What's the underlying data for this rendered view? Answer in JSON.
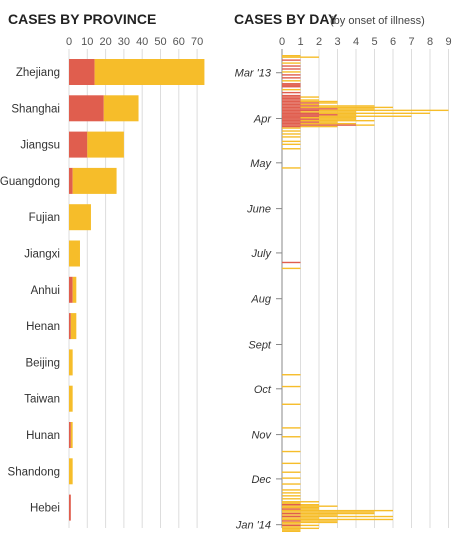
{
  "colors": {
    "dead": "#e05e4e",
    "alive": "#f6bd2a",
    "grid": "#dddddd",
    "axis": "#888888"
  },
  "chart_data": [
    {
      "type": "bar",
      "title": "CASES BY PROVINCE",
      "orientation": "horizontal",
      "stacked": true,
      "xlim": [
        0,
        75
      ],
      "xticks": [
        0,
        10,
        20,
        30,
        40,
        50,
        60,
        70
      ],
      "categories": [
        "Zhejiang",
        "Shanghai",
        "Jiangsu",
        "Guangdong",
        "Fujian",
        "Jiangxi",
        "Anhui",
        "Henan",
        "Beijing",
        "Taiwan",
        "Hunan",
        "Shandong",
        "Hebei"
      ],
      "series": [
        {
          "values": [
            14,
            19,
            10,
            2,
            0,
            0,
            2,
            1,
            0,
            0,
            1,
            0,
            1
          ]
        },
        {
          "values": [
            60,
            19,
            20,
            24,
            12,
            6,
            2,
            3,
            2,
            2,
            1,
            2,
            0
          ]
        }
      ]
    },
    {
      "type": "bar",
      "title": "CASES BY DAY",
      "subtitle": "(by onset of illness)",
      "orientation": "horizontal",
      "stacked": true,
      "xlim": [
        0,
        9
      ],
      "xticks": [
        0,
        1,
        2,
        3,
        4,
        5,
        6,
        7,
        8,
        9
      ],
      "month_labels": [
        "Mar '13",
        "Apr",
        "May",
        "June",
        "July",
        "Aug",
        "Sept",
        "Oct",
        "Nov",
        "Dec",
        "Jan '14"
      ],
      "days": [
        {
          "d": 0,
          "a": 0,
          "b": 1
        },
        {
          "d": 1,
          "a": 0,
          "b": 2
        },
        {
          "d": 3,
          "a": 1,
          "b": 0
        },
        {
          "d": 5,
          "a": 0,
          "b": 1
        },
        {
          "d": 7,
          "a": 1,
          "b": 0
        },
        {
          "d": 9,
          "a": 1,
          "b": 0
        },
        {
          "d": 11,
          "a": 0,
          "b": 1
        },
        {
          "d": 13,
          "a": 1,
          "b": 0
        },
        {
          "d": 15,
          "a": 1,
          "b": 0
        },
        {
          "d": 17,
          "a": 0,
          "b": 1
        },
        {
          "d": 19,
          "a": 1,
          "b": 0
        },
        {
          "d": 20,
          "a": 1,
          "b": 0
        },
        {
          "d": 21,
          "a": 1,
          "b": 0
        },
        {
          "d": 23,
          "a": 0,
          "b": 1
        },
        {
          "d": 25,
          "a": 1,
          "b": 0
        },
        {
          "d": 27,
          "a": 1,
          "b": 0
        },
        {
          "d": 28,
          "a": 1,
          "b": 1
        },
        {
          "d": 29,
          "a": 1,
          "b": 0
        },
        {
          "d": 30,
          "a": 1,
          "b": 1
        },
        {
          "d": 31,
          "a": 1,
          "b": 2
        },
        {
          "d": 32,
          "a": 2,
          "b": 1
        },
        {
          "d": 33,
          "a": 1,
          "b": 1
        },
        {
          "d": 34,
          "a": 2,
          "b": 3
        },
        {
          "d": 35,
          "a": 1,
          "b": 5
        },
        {
          "d": 36,
          "a": 3,
          "b": 2
        },
        {
          "d": 37,
          "a": 2,
          "b": 7
        },
        {
          "d": 38,
          "a": 1,
          "b": 3
        },
        {
          "d": 39,
          "a": 2,
          "b": 6
        },
        {
          "d": 40,
          "a": 3,
          "b": 1
        },
        {
          "d": 41,
          "a": 2,
          "b": 5
        },
        {
          "d": 42,
          "a": 1,
          "b": 3
        },
        {
          "d": 43,
          "a": 2,
          "b": 2
        },
        {
          "d": 44,
          "a": 1,
          "b": 4
        },
        {
          "d": 45,
          "a": 2,
          "b": 1
        },
        {
          "d": 46,
          "a": 1,
          "b": 3
        },
        {
          "d": 47,
          "a": 4,
          "b": 1
        },
        {
          "d": 48,
          "a": 1,
          "b": 2
        },
        {
          "d": 49,
          "a": 0,
          "b": 1
        },
        {
          "d": 51,
          "a": 0,
          "b": 1
        },
        {
          "d": 53,
          "a": 0,
          "b": 1
        },
        {
          "d": 55,
          "a": 0,
          "b": 1
        },
        {
          "d": 58,
          "a": 0,
          "b": 1
        },
        {
          "d": 60,
          "a": 0,
          "b": 1
        },
        {
          "d": 63,
          "a": 0,
          "b": 1
        },
        {
          "d": 76,
          "a": 0,
          "b": 1
        },
        {
          "d": 140,
          "a": 1,
          "b": 0
        },
        {
          "d": 144,
          "a": 0,
          "b": 1
        },
        {
          "d": 216,
          "a": 0,
          "b": 1
        },
        {
          "d": 224,
          "a": 0,
          "b": 1
        },
        {
          "d": 236,
          "a": 0,
          "b": 1
        },
        {
          "d": 252,
          "a": 0,
          "b": 1
        },
        {
          "d": 258,
          "a": 0,
          "b": 1
        },
        {
          "d": 268,
          "a": 0,
          "b": 1
        },
        {
          "d": 276,
          "a": 0,
          "b": 1
        },
        {
          "d": 282,
          "a": 0,
          "b": 1
        },
        {
          "d": 286,
          "a": 0,
          "b": 1
        },
        {
          "d": 290,
          "a": 0,
          "b": 1
        },
        {
          "d": 294,
          "a": 0,
          "b": 1
        },
        {
          "d": 296,
          "a": 0,
          "b": 1
        },
        {
          "d": 298,
          "a": 0,
          "b": 1
        },
        {
          "d": 300,
          "a": 0,
          "b": 1
        },
        {
          "d": 302,
          "a": 0,
          "b": 2
        },
        {
          "d": 303,
          "a": 0,
          "b": 1
        },
        {
          "d": 304,
          "a": 1,
          "b": 1
        },
        {
          "d": 305,
          "a": 0,
          "b": 3
        },
        {
          "d": 306,
          "a": 0,
          "b": 2
        },
        {
          "d": 307,
          "a": 1,
          "b": 1
        },
        {
          "d": 308,
          "a": 0,
          "b": 6
        },
        {
          "d": 309,
          "a": 0,
          "b": 5
        },
        {
          "d": 310,
          "a": 1,
          "b": 4
        },
        {
          "d": 311,
          "a": 0,
          "b": 3
        },
        {
          "d": 312,
          "a": 1,
          "b": 5
        },
        {
          "d": 313,
          "a": 0,
          "b": 2
        },
        {
          "d": 314,
          "a": 0,
          "b": 6
        },
        {
          "d": 315,
          "a": 1,
          "b": 2
        },
        {
          "d": 316,
          "a": 0,
          "b": 3
        },
        {
          "d": 317,
          "a": 0,
          "b": 1
        },
        {
          "d": 318,
          "a": 1,
          "b": 1
        },
        {
          "d": 319,
          "a": 0,
          "b": 1
        },
        {
          "d": 320,
          "a": 0,
          "b": 2
        },
        {
          "d": 321,
          "a": 0,
          "b": 1
        },
        {
          "d": 322,
          "a": 0,
          "b": 1
        }
      ]
    }
  ]
}
